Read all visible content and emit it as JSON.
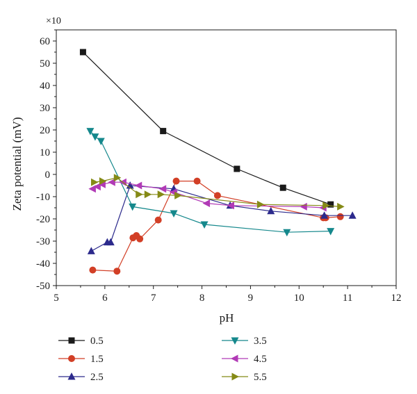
{
  "chart_data": {
    "type": "line",
    "multiplier_label": "×10",
    "xlabel": "pH",
    "ylabel": "Zeta potential (mV)",
    "xlim": [
      5,
      12
    ],
    "ylim": [
      -50,
      65
    ],
    "x_ticks": [
      5,
      6,
      7,
      8,
      9,
      10,
      11,
      12
    ],
    "y_ticks": [
      -50,
      -40,
      -30,
      -20,
      -10,
      0,
      10,
      20,
      30,
      40,
      50,
      60
    ],
    "grid": false,
    "legend_position": "bottom",
    "series": [
      {
        "name": "0.5",
        "color": "#1a1a1a",
        "marker": "square",
        "points": [
          [
            5.55,
            55
          ],
          [
            7.2,
            19.5
          ],
          [
            8.72,
            2.5
          ],
          [
            9.67,
            -6
          ],
          [
            10.65,
            -13.5
          ]
        ]
      },
      {
        "name": "1.5",
        "color": "#d23f26",
        "marker": "circle",
        "points": [
          [
            5.75,
            -43
          ],
          [
            6.25,
            -43.5
          ],
          [
            6.58,
            -28.5
          ],
          [
            6.65,
            -27.5
          ],
          [
            6.72,
            -29
          ],
          [
            7.1,
            -20.5
          ],
          [
            7.47,
            -3
          ],
          [
            7.9,
            -3
          ],
          [
            8.32,
            -9.5
          ],
          [
            10.5,
            -19.5
          ],
          [
            10.55,
            -19.5
          ],
          [
            10.85,
            -19
          ]
        ]
      },
      {
        "name": "2.5",
        "color": "#2c2a8c",
        "marker": "triangle-up",
        "points": [
          [
            5.72,
            -34.5
          ],
          [
            6.05,
            -30.5
          ],
          [
            6.12,
            -30.5
          ],
          [
            6.52,
            -5
          ],
          [
            7.42,
            -6.5
          ],
          [
            8.58,
            -14
          ],
          [
            9.42,
            -16.5
          ],
          [
            10.52,
            -18.5
          ],
          [
            11.1,
            -18.5
          ]
        ]
      },
      {
        "name": "3.5",
        "color": "#15888c",
        "marker": "triangle-down",
        "points": [
          [
            5.7,
            19.5
          ],
          [
            5.8,
            17
          ],
          [
            5.92,
            15
          ],
          [
            6.57,
            -14.5
          ],
          [
            7.42,
            -17.5
          ],
          [
            8.05,
            -22.5
          ],
          [
            9.75,
            -26
          ],
          [
            10.65,
            -25.5
          ]
        ]
      },
      {
        "name": "4.5",
        "color": "#b13ab6",
        "marker": "triangle-left",
        "points": [
          [
            5.75,
            -6.5
          ],
          [
            5.85,
            -5.5
          ],
          [
            5.95,
            -4.5
          ],
          [
            6.15,
            -3.5
          ],
          [
            6.38,
            -3.5
          ],
          [
            6.7,
            -5
          ],
          [
            7.2,
            -6.5
          ],
          [
            7.42,
            -8
          ],
          [
            8.1,
            -13
          ],
          [
            8.6,
            -14
          ],
          [
            10.1,
            -14.5
          ],
          [
            10.5,
            -15
          ]
        ]
      },
      {
        "name": "5.5",
        "color": "#858a16",
        "marker": "triangle-right",
        "points": [
          [
            5.78,
            -3.5
          ],
          [
            5.95,
            -3
          ],
          [
            6.25,
            -1.5
          ],
          [
            6.7,
            -9
          ],
          [
            6.88,
            -9
          ],
          [
            7.15,
            -9
          ],
          [
            7.5,
            -9.5
          ],
          [
            9.2,
            -13.5
          ],
          [
            10.55,
            -14
          ],
          [
            10.85,
            -14.5
          ]
        ]
      }
    ]
  }
}
